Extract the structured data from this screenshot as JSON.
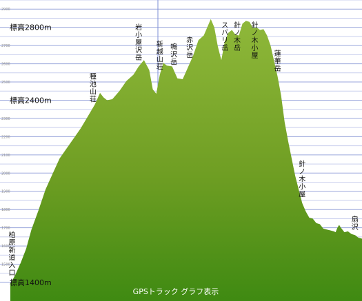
{
  "chart_data": {
    "type": "area",
    "title": "GPSトラック グラフ表示",
    "y_unit": "m",
    "ylim": [
      1400,
      2950
    ],
    "y_labels": [
      {
        "value": 2800,
        "text": "標高2800m"
      },
      {
        "value": 2400,
        "text": "標高2400m"
      },
      {
        "value": 1400,
        "text": "標高1400m"
      }
    ],
    "y_ticks": [
      {
        "value": 1500,
        "text": "1500"
      },
      {
        "value": 1600,
        "text": "1600"
      },
      {
        "value": 1700,
        "text": "1700"
      },
      {
        "value": 1800,
        "text": "1800"
      },
      {
        "value": 1900,
        "text": "1900"
      },
      {
        "value": 2000,
        "text": "2000"
      },
      {
        "value": 2100,
        "text": "2100"
      },
      {
        "value": 2200,
        "text": "2200"
      },
      {
        "value": 2300,
        "text": "2300"
      },
      {
        "value": 2500,
        "text": "2500"
      },
      {
        "value": 2600,
        "text": "2600"
      },
      {
        "value": 2700,
        "text": "2700"
      },
      {
        "value": 2900,
        "text": "2900"
      }
    ],
    "xlim": [
      0,
      100
    ],
    "series": [
      {
        "color": "#6f9e23",
        "x": [
          0,
          1.5,
          3,
          4.5,
          6,
          8,
          10,
          12,
          14,
          16,
          18,
          20,
          22,
          24,
          25.5,
          26.5,
          27.5,
          29,
          31,
          33,
          35,
          36.5,
          38,
          39.5,
          40.5,
          41.5,
          42.5,
          43.5,
          44.5,
          46,
          47.5,
          49,
          50.5,
          52,
          53.5,
          55,
          56,
          57,
          58,
          59,
          60,
          61,
          62,
          63,
          64,
          65,
          66,
          67,
          68,
          69,
          70,
          71,
          72,
          73,
          74,
          75,
          76,
          77,
          78,
          79,
          80,
          81,
          82,
          83,
          84,
          85,
          86,
          87,
          88,
          89,
          90,
          91,
          92,
          92.5,
          93,
          93.5,
          94,
          95,
          96,
          97,
          98,
          99,
          100
        ],
        "values": [
          1390,
          1450,
          1510,
          1590,
          1690,
          1800,
          1910,
          2000,
          2080,
          2140,
          2190,
          2250,
          2310,
          2380,
          2440,
          2420,
          2400,
          2410,
          2450,
          2510,
          2540,
          2590,
          2620,
          2570,
          2460,
          2440,
          2540,
          2610,
          2590,
          2590,
          2520,
          2520,
          2580,
          2650,
          2730,
          2760,
          2800,
          2850,
          2800,
          2700,
          2620,
          2730,
          2770,
          2790,
          2760,
          2760,
          2820,
          2840,
          2830,
          2800,
          2800,
          2790,
          2790,
          2760,
          2700,
          2620,
          2530,
          2430,
          2280,
          2180,
          2080,
          1990,
          1910,
          1840,
          1790,
          1760,
          1750,
          1730,
          1720,
          1700,
          1690,
          1690,
          1680,
          1680,
          1700,
          1720,
          1700,
          1680,
          1680,
          1670,
          1660,
          1650,
          1640
        ]
      }
    ],
    "annotations": [
      {
        "x": 0.5,
        "text": "柏原新道入口"
      },
      {
        "x": 23.5,
        "text": "種池山荘"
      },
      {
        "x": 36.5,
        "text": "岩小屋沢岳"
      },
      {
        "x": 42.5,
        "text": "新越山荘"
      },
      {
        "x": 46.5,
        "text": "鳴沢岳"
      },
      {
        "x": 51,
        "text": "赤沢岳"
      },
      {
        "x": 61,
        "text": "スバリ岳"
      },
      {
        "x": 64.5,
        "text": "針ノ木岳"
      },
      {
        "x": 69.5,
        "text": "針ノ木小屋"
      },
      {
        "x": 76,
        "text": "蓮華岳"
      },
      {
        "x": 83,
        "text": "針ノ木小屋"
      },
      {
        "x": 98,
        "text": "扇沢"
      }
    ]
  }
}
